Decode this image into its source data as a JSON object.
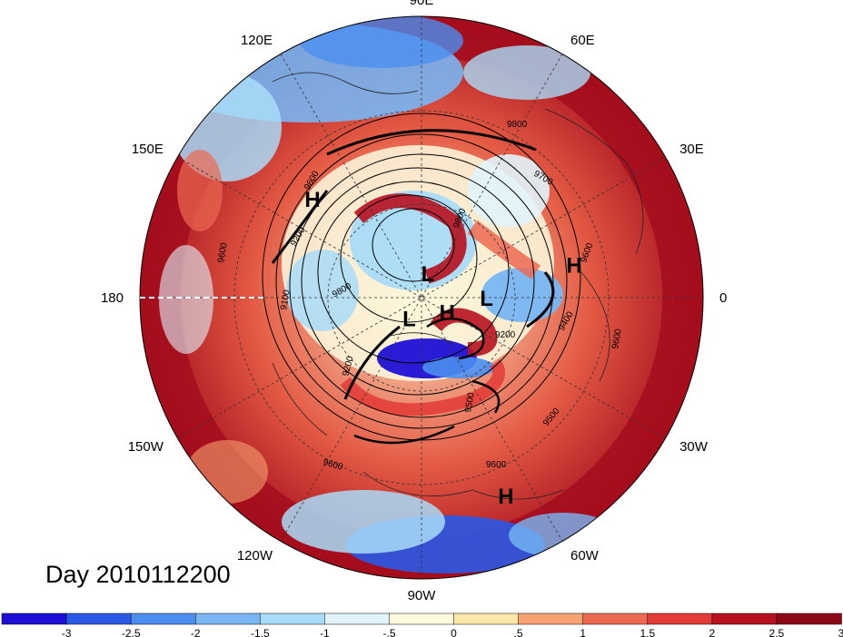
{
  "day_label": "Day 2010112200",
  "longitude_labels": [
    {
      "id": "lon-90e",
      "text": "90E",
      "angle": 90
    },
    {
      "id": "lon-60e",
      "text": "60E",
      "angle": 60
    },
    {
      "id": "lon-30e",
      "text": "30E",
      "angle": 30
    },
    {
      "id": "lon-0",
      "text": "0",
      "angle": 0
    },
    {
      "id": "lon-30w",
      "text": "30W",
      "angle": -30
    },
    {
      "id": "lon-60w",
      "text": "60W",
      "angle": -60
    },
    {
      "id": "lon-90w",
      "text": "90W",
      "angle": -90
    },
    {
      "id": "lon-120w",
      "text": "120W",
      "angle": -120
    },
    {
      "id": "lon-150w",
      "text": "150W",
      "angle": -150
    },
    {
      "id": "lon-180",
      "text": "180",
      "angle": 180
    },
    {
      "id": "lon-150e",
      "text": "150E",
      "angle": 150
    },
    {
      "id": "lon-120e",
      "text": "120E",
      "angle": 120
    }
  ],
  "pressure_centers": [
    {
      "id": "high-east-asia",
      "type": "H",
      "lon": 138,
      "lat": 35
    },
    {
      "id": "high-europe",
      "type": "H",
      "lon": 12,
      "lat": 32
    },
    {
      "id": "high-atlantic",
      "type": "H",
      "lon": -67,
      "lat": 15
    },
    {
      "id": "high-canada",
      "type": "H",
      "lon": -30,
      "lat": 78
    },
    {
      "id": "low-siberia",
      "type": "L",
      "lon": 75,
      "lat": 80
    },
    {
      "id": "low-scandinavia",
      "type": "L",
      "lon": -1,
      "lat": 64
    },
    {
      "id": "low-alaska",
      "type": "L",
      "lon": -120,
      "lat": 80
    }
  ],
  "contour_labels": [
    "9100",
    "9200",
    "9400",
    "9500",
    "9600",
    "9700",
    "9800"
  ],
  "colorbar": {
    "colors": [
      "#1e0fd6",
      "#2a59e6",
      "#4b8ef0",
      "#79b6f3",
      "#a9dcf8",
      "#e1f4fb",
      "#fdfadf",
      "#fde7a8",
      "#f7a070",
      "#ec6a52",
      "#e33b36",
      "#b8111f",
      "#8c0a17"
    ],
    "tick_labels": [
      "-3",
      "-2.5",
      "-2",
      "-1.5",
      "-1",
      "-.5",
      "0",
      ".5",
      "1",
      "1.5",
      "2",
      "2.5",
      "3"
    ]
  },
  "colors": {
    "warm": "#b8111f",
    "cold": "#4b8ef0"
  }
}
